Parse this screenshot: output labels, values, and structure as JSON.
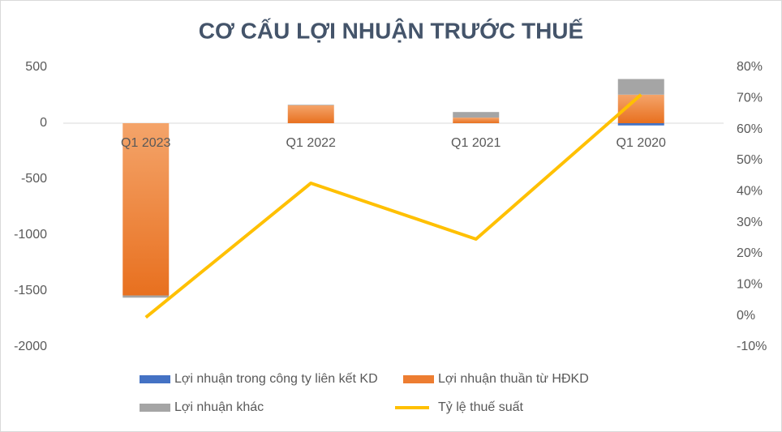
{
  "chart_data": {
    "type": "bar-line",
    "title": "CƠ CẤU LỢI NHUẬN TRƯỚC THUẾ",
    "categories": [
      "Q1 2023",
      "Q1 2022",
      "Q1 2021",
      "Q1 2020"
    ],
    "series": [
      {
        "name": "Lợi nhuận trong công ty liên kết KD",
        "color": "#4472c4",
        "type": "bar",
        "values": [
          0,
          0,
          0,
          -20
        ]
      },
      {
        "name": "Lợi nhuận thuần từ HĐKD",
        "color": "#ed7d31",
        "type": "bar",
        "values": [
          -1540,
          160,
          50,
          255
        ]
      },
      {
        "name": "Lợi nhuận khác",
        "color": "#a5a5a5",
        "type": "bar",
        "values": [
          -20,
          5,
          50,
          140
        ]
      },
      {
        "name": "Tỷ lệ thuế suất",
        "color": "#ffc000",
        "type": "line",
        "axis": "y2",
        "values": [
          -0.5,
          42.7,
          24.7,
          71.2
        ]
      }
    ],
    "ylim": [
      -2000,
      500
    ],
    "yticks": [
      500,
      0,
      -500,
      -1000,
      -1500,
      -2000
    ],
    "y2lim": [
      -10,
      80
    ],
    "y2ticks": [
      {
        "value": 80,
        "label": "80%"
      },
      {
        "value": 70,
        "label": "70%"
      },
      {
        "value": 60,
        "label": "60%"
      },
      {
        "value": 50,
        "label": "50%"
      },
      {
        "value": 40,
        "label": "40%"
      },
      {
        "value": 30,
        "label": "30%"
      },
      {
        "value": 20,
        "label": "20%"
      },
      {
        "value": 10,
        "label": "10%"
      },
      {
        "value": 0,
        "label": "0%"
      },
      {
        "value": -10,
        "label": "-10%"
      }
    ]
  }
}
